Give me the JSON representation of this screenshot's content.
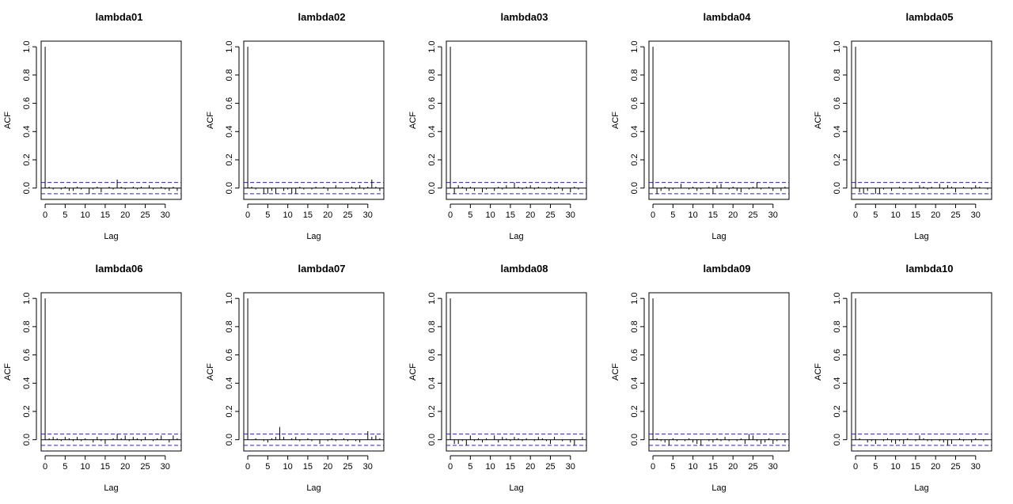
{
  "chart_data": [
    {
      "type": "bar",
      "title": "lambda01",
      "xlabel": "Lag",
      "ylabel": "ACF",
      "xlim": [
        -1,
        34
      ],
      "ylim": [
        -0.08,
        1.04
      ],
      "xticks": [
        0,
        5,
        10,
        15,
        20,
        25,
        30
      ],
      "yticks": [
        0.0,
        0.2,
        0.4,
        0.6,
        0.8,
        1.0
      ],
      "ci": 0.04,
      "x": [
        0,
        1,
        2,
        3,
        4,
        5,
        6,
        7,
        8,
        9,
        10,
        11,
        12,
        13,
        14,
        15,
        16,
        17,
        18,
        19,
        20,
        21,
        22,
        23,
        24,
        25,
        26,
        27,
        28,
        29,
        30,
        31,
        32,
        33
      ],
      "values": [
        1.0,
        0.01,
        -0.01,
        0.0,
        -0.01,
        0.01,
        -0.02,
        -0.02,
        0.01,
        -0.01,
        0.0,
        -0.04,
        -0.01,
        0.01,
        -0.03,
        0.0,
        0.01,
        -0.01,
        0.06,
        0.01,
        -0.01,
        0.0,
        0.01,
        -0.01,
        0.01,
        0.0,
        0.02,
        -0.01,
        0.0,
        0.01,
        -0.01,
        -0.02,
        0.01,
        -0.02
      ]
    },
    {
      "type": "bar",
      "title": "lambda02",
      "xlabel": "Lag",
      "ylabel": "ACF",
      "xlim": [
        -1,
        34
      ],
      "ylim": [
        -0.08,
        1.04
      ],
      "xticks": [
        0,
        5,
        10,
        15,
        20,
        25,
        30
      ],
      "yticks": [
        0.0,
        0.2,
        0.4,
        0.6,
        0.8,
        1.0
      ],
      "ci": 0.04,
      "x": [
        0,
        1,
        2,
        3,
        4,
        5,
        6,
        7,
        8,
        9,
        10,
        11,
        12,
        13,
        14,
        15,
        16,
        17,
        18,
        19,
        20,
        21,
        22,
        23,
        24,
        25,
        26,
        27,
        28,
        29,
        30,
        31,
        32,
        33
      ],
      "values": [
        1.0,
        0.01,
        -0.01,
        0.0,
        -0.04,
        -0.04,
        -0.02,
        -0.04,
        0.0,
        -0.02,
        -0.01,
        -0.04,
        -0.04,
        0.01,
        -0.01,
        0.0,
        -0.01,
        0.01,
        0.0,
        0.01,
        -0.02,
        0.0,
        0.02,
        0.0,
        -0.01,
        0.0,
        0.01,
        -0.01,
        0.02,
        -0.01,
        0.01,
        0.06,
        0.01,
        -0.02
      ]
    },
    {
      "type": "bar",
      "title": "lambda03",
      "xlabel": "Lag",
      "ylabel": "ACF",
      "xlim": [
        -1,
        34
      ],
      "ylim": [
        -0.08,
        1.04
      ],
      "xticks": [
        0,
        5,
        10,
        15,
        20,
        25,
        30
      ],
      "yticks": [
        0.0,
        0.2,
        0.4,
        0.6,
        0.8,
        1.0
      ],
      "ci": 0.04,
      "x": [
        0,
        1,
        2,
        3,
        4,
        5,
        6,
        7,
        8,
        9,
        10,
        11,
        12,
        13,
        14,
        15,
        16,
        17,
        18,
        19,
        20,
        21,
        22,
        23,
        24,
        25,
        26,
        27,
        28,
        29,
        30,
        31,
        32,
        33
      ],
      "values": [
        1.0,
        -0.04,
        0.02,
        0.01,
        -0.02,
        0.01,
        -0.02,
        0.0,
        -0.03,
        -0.01,
        0.0,
        -0.02,
        0.01,
        -0.01,
        0.02,
        0.0,
        0.04,
        0.01,
        -0.01,
        0.01,
        0.02,
        -0.01,
        0.01,
        0.0,
        -0.01,
        0.01,
        -0.01,
        0.01,
        -0.02,
        0.0,
        -0.03,
        0.01,
        -0.01,
        0.0
      ]
    },
    {
      "type": "bar",
      "title": "lambda04",
      "xlabel": "Lag",
      "ylabel": "ACF",
      "xlim": [
        -1,
        34
      ],
      "ylim": [
        -0.08,
        1.04
      ],
      "xticks": [
        0,
        5,
        10,
        15,
        20,
        25,
        30
      ],
      "yticks": [
        0.0,
        0.2,
        0.4,
        0.6,
        0.8,
        1.0
      ],
      "ci": 0.04,
      "x": [
        0,
        1,
        2,
        3,
        4,
        5,
        6,
        7,
        8,
        9,
        10,
        11,
        12,
        13,
        14,
        15,
        16,
        17,
        18,
        19,
        20,
        21,
        22,
        23,
        24,
        25,
        26,
        27,
        28,
        29,
        30,
        31,
        32,
        33
      ],
      "values": [
        1.0,
        -0.04,
        -0.02,
        0.01,
        -0.02,
        -0.01,
        0.0,
        0.03,
        0.0,
        -0.01,
        0.01,
        -0.02,
        -0.01,
        0.0,
        0.01,
        -0.04,
        0.02,
        0.03,
        0.0,
        -0.01,
        0.01,
        -0.02,
        -0.03,
        0.0,
        -0.01,
        0.01,
        0.04,
        -0.01,
        0.0,
        0.01,
        -0.02,
        0.0,
        -0.02,
        0.01
      ]
    },
    {
      "type": "bar",
      "title": "lambda05",
      "xlabel": "Lag",
      "ylabel": "ACF",
      "xlim": [
        -1,
        34
      ],
      "ylim": [
        -0.08,
        1.04
      ],
      "xticks": [
        0,
        5,
        10,
        15,
        20,
        25,
        30
      ],
      "yticks": [
        0.0,
        0.2,
        0.4,
        0.6,
        0.8,
        1.0
      ],
      "ci": 0.04,
      "x": [
        0,
        1,
        2,
        3,
        4,
        5,
        6,
        7,
        8,
        9,
        10,
        11,
        12,
        13,
        14,
        15,
        16,
        17,
        18,
        19,
        20,
        21,
        22,
        23,
        24,
        25,
        26,
        27,
        28,
        29,
        30,
        31,
        32,
        33
      ],
      "values": [
        1.0,
        -0.03,
        -0.04,
        -0.02,
        0.0,
        -0.04,
        -0.04,
        -0.01,
        0.0,
        -0.02,
        0.0,
        0.01,
        -0.01,
        0.0,
        -0.01,
        0.0,
        0.02,
        0.01,
        -0.01,
        0.01,
        0.0,
        0.03,
        -0.01,
        0.02,
        0.01,
        -0.03,
        0.0,
        0.01,
        0.0,
        -0.01,
        0.02,
        0.01,
        0.0,
        -0.01
      ]
    },
    {
      "type": "bar",
      "title": "lambda06",
      "xlabel": "Lag",
      "ylabel": "ACF",
      "xlim": [
        -1,
        34
      ],
      "ylim": [
        -0.08,
        1.04
      ],
      "xticks": [
        0,
        5,
        10,
        15,
        20,
        25,
        30
      ],
      "yticks": [
        0.0,
        0.2,
        0.4,
        0.6,
        0.8,
        1.0
      ],
      "ci": 0.04,
      "x": [
        0,
        1,
        2,
        3,
        4,
        5,
        6,
        7,
        8,
        9,
        10,
        11,
        12,
        13,
        14,
        15,
        16,
        17,
        18,
        19,
        20,
        21,
        22,
        23,
        24,
        25,
        26,
        27,
        28,
        29,
        30,
        31,
        32,
        33
      ],
      "values": [
        1.0,
        0.01,
        0.02,
        0.01,
        -0.01,
        0.02,
        0.01,
        -0.01,
        0.02,
        -0.01,
        0.01,
        0.0,
        -0.02,
        0.02,
        -0.01,
        -0.03,
        0.0,
        0.01,
        0.04,
        0.01,
        0.03,
        -0.01,
        0.02,
        0.01,
        -0.01,
        0.02,
        0.0,
        -0.01,
        0.01,
        0.03,
        0.0,
        -0.02,
        0.03,
        0.01
      ]
    },
    {
      "type": "bar",
      "title": "lambda07",
      "xlabel": "Lag",
      "ylabel": "ACF",
      "xlim": [
        -1,
        34
      ],
      "ylim": [
        -0.08,
        1.04
      ],
      "xticks": [
        0,
        5,
        10,
        15,
        20,
        25,
        30
      ],
      "yticks": [
        0.0,
        0.2,
        0.4,
        0.6,
        0.8,
        1.0
      ],
      "ci": 0.04,
      "x": [
        0,
        1,
        2,
        3,
        4,
        5,
        6,
        7,
        8,
        9,
        10,
        11,
        12,
        13,
        14,
        15,
        16,
        17,
        18,
        19,
        20,
        21,
        22,
        23,
        24,
        25,
        26,
        27,
        28,
        29,
        30,
        31,
        32,
        33
      ],
      "values": [
        1.0,
        0.0,
        0.01,
        0.0,
        -0.01,
        -0.02,
        0.01,
        0.02,
        0.09,
        0.02,
        0.0,
        0.01,
        0.02,
        -0.01,
        0.0,
        0.01,
        -0.01,
        0.0,
        -0.03,
        0.0,
        -0.01,
        0.01,
        -0.01,
        0.0,
        0.01,
        -0.01,
        0.0,
        -0.01,
        -0.02,
        0.0,
        0.06,
        0.02,
        0.03,
        0.01
      ]
    },
    {
      "type": "bar",
      "title": "lambda08",
      "xlabel": "Lag",
      "ylabel": "ACF",
      "xlim": [
        -1,
        34
      ],
      "ylim": [
        -0.08,
        1.04
      ],
      "xticks": [
        0,
        5,
        10,
        15,
        20,
        25,
        30
      ],
      "yticks": [
        0.0,
        0.2,
        0.4,
        0.6,
        0.8,
        1.0
      ],
      "ci": 0.04,
      "x": [
        0,
        1,
        2,
        3,
        4,
        5,
        6,
        7,
        8,
        9,
        10,
        11,
        12,
        13,
        14,
        15,
        16,
        17,
        18,
        19,
        20,
        21,
        22,
        23,
        24,
        25,
        26,
        27,
        28,
        29,
        30,
        31,
        32,
        33
      ],
      "values": [
        1.0,
        -0.03,
        -0.03,
        -0.01,
        -0.04,
        0.03,
        -0.01,
        0.01,
        -0.02,
        0.01,
        0.0,
        0.03,
        -0.02,
        0.02,
        0.01,
        -0.01,
        0.02,
        0.01,
        -0.01,
        0.01,
        0.0,
        -0.01,
        0.02,
        0.01,
        -0.01,
        -0.03,
        0.02,
        0.0,
        -0.01,
        0.0,
        -0.02,
        -0.04,
        0.0,
        0.02
      ]
    },
    {
      "type": "bar",
      "title": "lambda09",
      "xlabel": "Lag",
      "ylabel": "ACF",
      "xlim": [
        -1,
        34
      ],
      "ylim": [
        -0.08,
        1.04
      ],
      "xticks": [
        0,
        5,
        10,
        15,
        20,
        25,
        30
      ],
      "yticks": [
        0.0,
        0.2,
        0.4,
        0.6,
        0.8,
        1.0
      ],
      "ci": 0.04,
      "x": [
        0,
        1,
        2,
        3,
        4,
        5,
        6,
        7,
        8,
        9,
        10,
        11,
        12,
        13,
        14,
        15,
        16,
        17,
        18,
        19,
        20,
        21,
        22,
        23,
        24,
        25,
        26,
        27,
        28,
        29,
        30,
        31,
        32,
        33
      ],
      "values": [
        1.0,
        0.01,
        -0.01,
        -0.02,
        -0.04,
        0.01,
        -0.01,
        0.0,
        -0.01,
        0.01,
        -0.02,
        -0.03,
        -0.04,
        0.0,
        -0.01,
        -0.02,
        0.01,
        -0.01,
        0.02,
        -0.01,
        0.0,
        -0.01,
        0.01,
        -0.03,
        0.04,
        0.03,
        -0.01,
        -0.03,
        -0.02,
        0.01,
        -0.03,
        -0.01,
        0.0,
        -0.02
      ]
    },
    {
      "type": "bar",
      "title": "lambda10",
      "xlabel": "Lag",
      "ylabel": "ACF",
      "xlim": [
        -1,
        34
      ],
      "ylim": [
        -0.08,
        1.04
      ],
      "xticks": [
        0,
        5,
        10,
        15,
        20,
        25,
        30
      ],
      "yticks": [
        0.0,
        0.2,
        0.4,
        0.6,
        0.8,
        1.0
      ],
      "ci": 0.04,
      "x": [
        0,
        1,
        2,
        3,
        4,
        5,
        6,
        7,
        8,
        9,
        10,
        11,
        12,
        13,
        14,
        15,
        16,
        17,
        18,
        19,
        20,
        21,
        22,
        23,
        24,
        25,
        26,
        27,
        28,
        29,
        30,
        31,
        32,
        33
      ],
      "values": [
        1.0,
        0.01,
        0.0,
        -0.02,
        -0.01,
        -0.03,
        0.0,
        -0.01,
        0.01,
        -0.02,
        -0.03,
        -0.01,
        -0.03,
        0.01,
        0.0,
        -0.01,
        0.03,
        0.01,
        -0.01,
        -0.01,
        0.0,
        -0.01,
        -0.02,
        -0.04,
        -0.03,
        0.0,
        0.01,
        -0.01,
        0.0,
        -0.02,
        0.01,
        0.0,
        -0.01,
        0.0
      ]
    }
  ]
}
